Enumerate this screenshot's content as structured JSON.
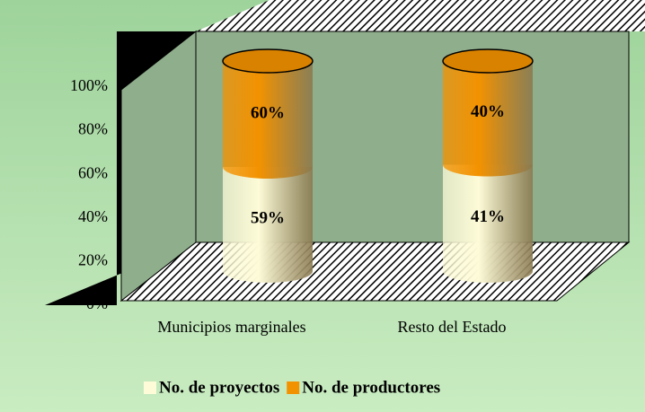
{
  "chart_data": {
    "type": "bar",
    "stacked": "percent",
    "categories": [
      "Municipios marginales",
      "Resto del Estado"
    ],
    "series": [
      {
        "name": "No. de proyectos",
        "color": "#fdfbd8",
        "values": [
          59,
          41
        ],
        "value_labels": [
          "59%",
          "41%"
        ]
      },
      {
        "name": "No. de productores",
        "color": "#f39200",
        "values": [
          60,
          40
        ],
        "value_labels": [
          "60%",
          "40%"
        ]
      }
    ],
    "ylim": [
      0,
      100
    ],
    "yticks": [
      {
        "value": 0,
        "label": "0%"
      },
      {
        "value": 20,
        "label": "20%"
      },
      {
        "value": 40,
        "label": "40%"
      },
      {
        "value": 60,
        "label": "60%"
      },
      {
        "value": 80,
        "label": "80%"
      },
      {
        "value": 100,
        "label": "100%"
      }
    ],
    "legend": "bottom"
  }
}
